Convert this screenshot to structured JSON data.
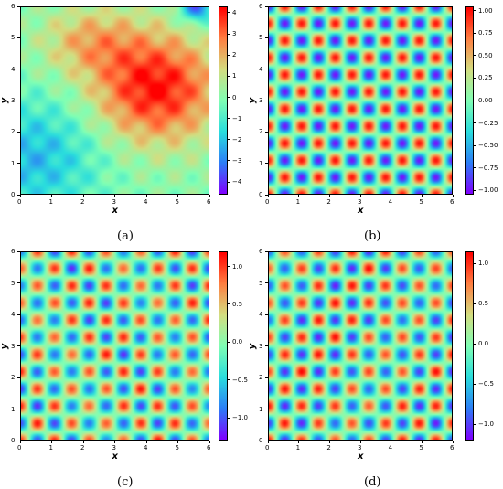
{
  "colors": {
    "colormap": "rainbow",
    "stops": [
      "#8000ff",
      "#2c7ef7",
      "#2adddd",
      "#80ffb4",
      "#d4dd80",
      "#ff7e41",
      "#ff0000"
    ]
  },
  "chart_data": [
    {
      "id": "a",
      "type": "heatmap",
      "caption": "(a)",
      "xlabel": "x",
      "ylabel": "y",
      "xlim": [
        0,
        6
      ],
      "ylim": [
        0,
        6
      ],
      "xticks": [
        "0",
        "1",
        "2",
        "3",
        "4",
        "5",
        "6"
      ],
      "yticks": [
        "0",
        "1",
        "2",
        "3",
        "4",
        "5",
        "6"
      ],
      "field": "smooth background ridge with periodic ripples; peak near (4.3, 3.4)",
      "colorbar": {
        "min": -4.6,
        "max": 4.3,
        "ticks": [
          4,
          3,
          2,
          1,
          0,
          -1,
          -2,
          -3,
          -4
        ],
        "labels": [
          "4",
          "3",
          "2",
          "1",
          "0",
          "−1",
          "−2",
          "−3",
          "−4"
        ]
      }
    },
    {
      "id": "b",
      "type": "heatmap",
      "caption": "(b)",
      "xlabel": "x",
      "ylabel": "y",
      "xlim": [
        0,
        6
      ],
      "ylim": [
        0,
        6
      ],
      "xticks": [
        "0",
        "1",
        "2",
        "3",
        "4",
        "5",
        "6"
      ],
      "yticks": [
        "0",
        "1",
        "2",
        "3",
        "4",
        "5",
        "6"
      ],
      "field": "periodic cells, 11 x 11",
      "colorbar": {
        "min": -1.05,
        "max": 1.05,
        "ticks": [
          1,
          0.75,
          0.5,
          0.25,
          0,
          -0.25,
          -0.5,
          -0.75,
          -1
        ],
        "labels": [
          "1.00",
          "0.75",
          "0.50",
          "0.25",
          "0.00",
          "−0.25",
          "−0.50",
          "−0.75",
          "−1.00"
        ]
      }
    },
    {
      "id": "c",
      "type": "heatmap",
      "caption": "(c)",
      "xlabel": "x",
      "ylabel": "y",
      "xlim": [
        0,
        6
      ],
      "ylim": [
        0,
        6
      ],
      "xticks": [
        "0",
        "1",
        "2",
        "3",
        "4",
        "5",
        "6"
      ],
      "yticks": [
        "0",
        "1",
        "2",
        "3",
        "4",
        "5",
        "6"
      ],
      "field": "periodic cells, 11 x 11, slight noise",
      "colorbar": {
        "min": -1.3,
        "max": 1.2,
        "ticks": [
          1.0,
          0.5,
          0,
          -0.5,
          -1.0
        ],
        "labels": [
          "1.0",
          "0.5",
          "0.0",
          "−0.5",
          "−1.0"
        ]
      }
    },
    {
      "id": "d",
      "type": "heatmap",
      "caption": "(d)",
      "xlabel": "x",
      "ylabel": "y",
      "xlim": [
        0,
        6
      ],
      "ylim": [
        0,
        6
      ],
      "xticks": [
        "0",
        "1",
        "2",
        "3",
        "4",
        "5",
        "6"
      ],
      "yticks": [
        "0",
        "1",
        "2",
        "3",
        "4",
        "5",
        "6"
      ],
      "field": "periodic cells, 11 x 11, slight noise",
      "colorbar": {
        "min": -1.2,
        "max": 1.15,
        "ticks": [
          1.0,
          0.5,
          0,
          -0.5,
          -1.0
        ],
        "labels": [
          "1.0",
          "0.5",
          "0.0",
          "−0.5",
          "−1.0"
        ]
      }
    }
  ]
}
